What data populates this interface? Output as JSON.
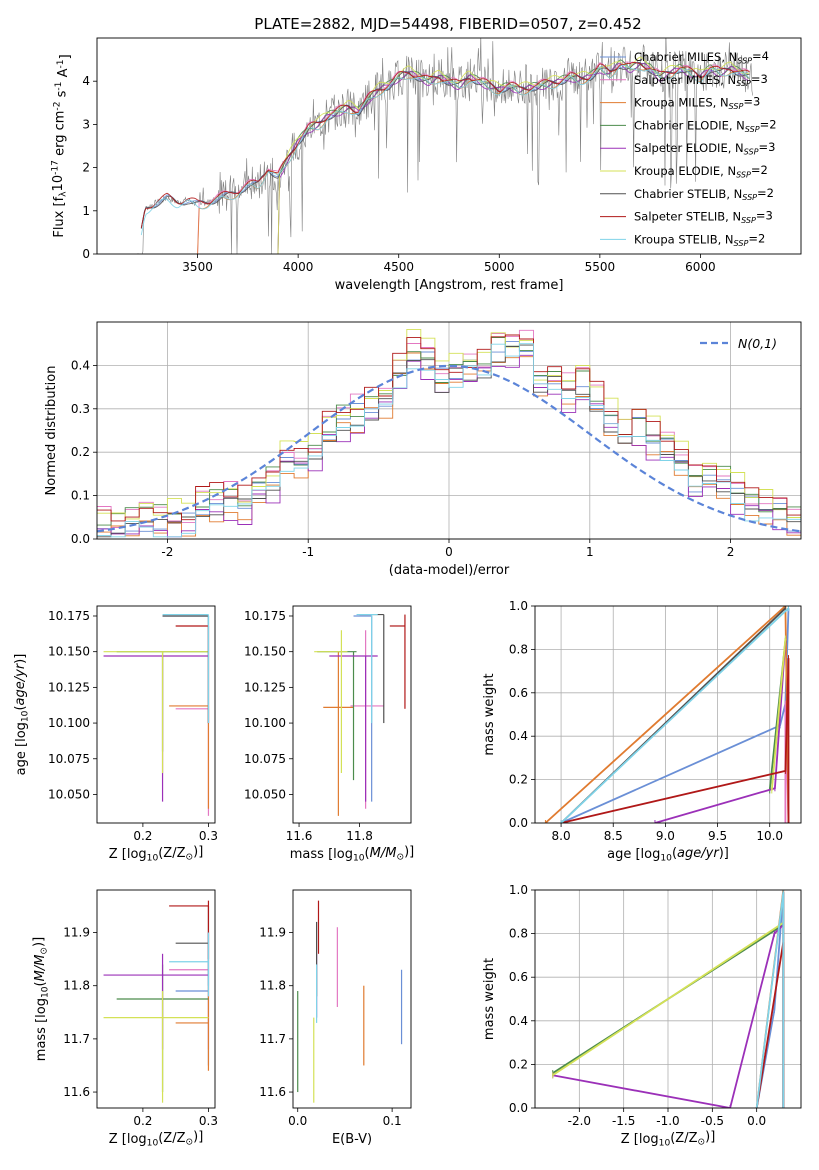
{
  "title": "PLATE=2882, MJD=54498, FIBERID=0507, z=0.452",
  "series_names": [
    "Chabrier MILES, N$_{SSP}$=4",
    "Salpeter MILES, N$_{SSP}$=3",
    "Kroupa MILES, N$_{SSP}$=3",
    "Chabrier ELODIE, N$_{SSP}$=2",
    "Salpeter ELODIE, N$_{SSP}$=3",
    "Kroupa ELODIE, N$_{SSP}$=2",
    "Chabrier STELIB, N$_{SSP}$=2",
    "Salpeter STELIB, N$_{SSP}$=3",
    "Kroupa STELIB, N$_{SSP}$=2"
  ],
  "colors": [
    "#6a8fd6",
    "#e377c2",
    "#e07b30",
    "#4c8c4c",
    "#9b30b8",
    "#d4e157",
    "#505050",
    "#b01818",
    "#7fd3e8"
  ],
  "chart_data": [
    {
      "id": "spectrum",
      "type": "line",
      "title": "PLATE=2882, MJD=54498, FIBERID=0507, z=0.452",
      "xlabel": "wavelength [Angstrom, rest frame]",
      "ylabel": "Flux [f$_λ$10$^{-17}$ erg cm$^{-2}$ s$^{-1}$ A$^{-1}$]",
      "xlim": [
        3000,
        6500
      ],
      "ylim": [
        0,
        5
      ],
      "xticks": [
        3500,
        4000,
        4500,
        5000,
        5500,
        6000
      ],
      "yticks": [
        0,
        1,
        2,
        3,
        4
      ],
      "legend": "upper right",
      "data_color": "#808080",
      "data": {
        "x": [
          3200,
          3240,
          3300,
          3350,
          3400,
          3450,
          3500,
          3550,
          3600,
          3650,
          3700,
          3750,
          3800,
          3850,
          3900,
          3950,
          4000,
          4050,
          4100,
          4150,
          4200,
          4250,
          4300,
          4350,
          4400,
          4450,
          4500,
          4550,
          4600,
          4650,
          4700,
          4750,
          4800,
          4850,
          4900,
          4950,
          5000,
          5050,
          5100,
          5150,
          5200,
          5250,
          5300,
          5350,
          5400,
          5450,
          5500,
          5550,
          5600,
          5650,
          5700,
          5750,
          5800,
          5850,
          5900,
          5950,
          6000,
          6050,
          6100,
          6150,
          6200,
          6250
        ],
        "y": [
          0,
          1.05,
          1.2,
          1.3,
          1.2,
          1.25,
          1.15,
          1.2,
          1.3,
          1.35,
          1.45,
          1.6,
          1.6,
          2.0,
          1.8,
          2.2,
          2.6,
          2.9,
          3.0,
          3.2,
          3.3,
          3.4,
          3.3,
          3.6,
          3.8,
          3.9,
          4.1,
          4.2,
          4.1,
          4.0,
          4.1,
          4.0,
          3.9,
          4.1,
          4.0,
          3.9,
          3.8,
          3.9,
          3.8,
          3.85,
          3.9,
          3.95,
          4.0,
          4.1,
          4.05,
          4.1,
          4.3,
          4.2,
          4.4,
          4.3,
          4.4,
          4.3,
          4.1,
          4.2,
          4.3,
          4.2,
          4.1,
          4.3,
          4.2,
          4.3,
          4.2,
          4.1
        ]
      },
      "models": [
        {
          "start": 3220,
          "end": 6250,
          "offset": 0
        },
        {
          "start": 3500,
          "end": 6250,
          "offset": 0.05
        },
        {
          "start": 3500,
          "end": 6250,
          "offset": -0.05
        },
        {
          "start": 3900,
          "end": 6250,
          "offset": 0.02
        },
        {
          "start": 3900,
          "end": 6250,
          "offset": -0.03
        },
        {
          "start": 3900,
          "end": 6250,
          "offset": 0.08
        },
        {
          "start": 3220,
          "end": 6250,
          "offset": -0.02
        },
        {
          "start": 3220,
          "end": 6250,
          "offset": 0.03
        },
        {
          "start": 3220,
          "end": 6250,
          "offset": -0.06
        }
      ]
    },
    {
      "id": "residuals",
      "type": "histogram",
      "xlabel": "(data-model)/error",
      "ylabel": "Normed distribution",
      "xlim": [
        -2.5,
        2.5
      ],
      "ylim": [
        0,
        0.5
      ],
      "xticks": [
        -2,
        -1,
        0,
        1,
        2
      ],
      "yticks": [
        0.0,
        0.1,
        0.2,
        0.3,
        0.4
      ],
      "reference_label": "$\\mathcal{N}(0,1)$",
      "reference_color": "#5b84d8",
      "bin_width": 0.1,
      "bins_start": -2.5,
      "heights": [
        0.03,
        0.03,
        0.04,
        0.04,
        0.04,
        0.04,
        0.04,
        0.08,
        0.08,
        0.09,
        0.08,
        0.11,
        0.13,
        0.18,
        0.18,
        0.2,
        0.25,
        0.27,
        0.29,
        0.3,
        0.32,
        0.38,
        0.43,
        0.41,
        0.37,
        0.38,
        0.39,
        0.4,
        0.44,
        0.43,
        0.44,
        0.36,
        0.37,
        0.34,
        0.36,
        0.32,
        0.27,
        0.24,
        0.26,
        0.23,
        0.21,
        0.18,
        0.13,
        0.15,
        0.13,
        0.1,
        0.08,
        0.07,
        0.06,
        0.04,
        0.03
      ]
    },
    {
      "id": "age_vs_Z",
      "type": "errorbar",
      "xlabel": "Z [log$_{10}$(Z/Z$_⊙$)]",
      "ylabel": "age  [log$_{10}$($age/yr$)]",
      "xlim": [
        0.13,
        0.31
      ],
      "ylim": [
        10.03,
        10.182
      ],
      "xticks": [
        0.2,
        0.3
      ],
      "yticks": [
        10.05,
        10.075,
        10.1,
        10.125,
        10.15,
        10.175
      ],
      "points": [
        {
          "x": 0.3,
          "y": 10.175,
          "xlo": 0.23,
          "xhi": 0.3,
          "ylo": 10.1,
          "yhi": 10.175
        },
        {
          "x": 0.3,
          "y": 10.11,
          "xlo": 0.25,
          "xhi": 0.3,
          "ylo": 10.035,
          "yhi": 10.11
        },
        {
          "x": 0.3,
          "y": 10.112,
          "xlo": 0.24,
          "xhi": 0.3,
          "ylo": 10.04,
          "yhi": 10.112
        },
        {
          "x": 0.23,
          "y": 10.15,
          "xlo": 0.16,
          "xhi": 0.3,
          "ylo": 10.08,
          "yhi": 10.15
        },
        {
          "x": 0.23,
          "y": 10.147,
          "xlo": 0.14,
          "xhi": 0.3,
          "ylo": 10.045,
          "yhi": 10.147
        },
        {
          "x": 0.23,
          "y": 10.15,
          "xlo": 0.14,
          "xhi": 0.3,
          "ylo": 10.065,
          "yhi": 10.15
        },
        {
          "x": 0.3,
          "y": 10.175,
          "xlo": 0.23,
          "xhi": 0.3,
          "ylo": 10.1,
          "yhi": 10.175
        },
        {
          "x": 0.3,
          "y": 10.168,
          "xlo": 0.25,
          "xhi": 0.3,
          "ylo": 10.1,
          "yhi": 10.168
        },
        {
          "x": 0.3,
          "y": 10.176,
          "xlo": 0.23,
          "xhi": 0.3,
          "ylo": 10.1,
          "yhi": 10.176
        }
      ]
    },
    {
      "id": "age_vs_mass",
      "type": "errorbar",
      "xlabel": "mass [log$_{10}$($M/M_⊙$)]",
      "ylabel": "",
      "xlim": [
        11.58,
        11.97
      ],
      "ylim": [
        10.03,
        10.182
      ],
      "xticks": [
        11.6,
        11.8
      ],
      "yticks": [
        10.05,
        10.075,
        10.1,
        10.125,
        10.15,
        10.175
      ],
      "points": [
        {
          "x": 11.84,
          "y": 10.175,
          "xlo": 11.78,
          "xhi": 11.84,
          "ylo": 10.045,
          "yhi": 10.175
        },
        {
          "x": 11.82,
          "y": 10.112,
          "xlo": 11.77,
          "xhi": 11.88,
          "ylo": 10.04,
          "yhi": 10.165
        },
        {
          "x": 11.73,
          "y": 10.111,
          "xlo": 11.68,
          "xhi": 11.78,
          "ylo": 10.035,
          "yhi": 10.15
        },
        {
          "x": 11.78,
          "y": 10.15,
          "xlo": 11.66,
          "xhi": 11.79,
          "ylo": 10.06,
          "yhi": 10.15
        },
        {
          "x": 11.82,
          "y": 10.147,
          "xlo": 11.7,
          "xhi": 11.86,
          "ylo": 10.045,
          "yhi": 10.147
        },
        {
          "x": 11.74,
          "y": 10.15,
          "xlo": 11.65,
          "xhi": 11.76,
          "ylo": 10.065,
          "yhi": 10.165
        },
        {
          "x": 11.88,
          "y": 10.176,
          "xlo": 11.8,
          "xhi": 11.88,
          "ylo": 10.1,
          "yhi": 10.176
        },
        {
          "x": 11.95,
          "y": 10.168,
          "xlo": 11.9,
          "xhi": 11.95,
          "ylo": 10.11,
          "yhi": 10.176
        },
        {
          "x": 11.84,
          "y": 10.176,
          "xlo": 11.79,
          "xhi": 11.86,
          "ylo": 10.1,
          "yhi": 10.176
        }
      ]
    },
    {
      "id": "weight_vs_age",
      "type": "line",
      "xlabel": "age  [log$_{10}$($age/yr$)]",
      "ylabel": "mass weight",
      "xlim": [
        7.75,
        10.3
      ],
      "ylim": [
        0,
        1
      ],
      "xticks": [
        8.0,
        8.5,
        9.0,
        9.5,
        10.0
      ],
      "yticks": [
        0.0,
        0.2,
        0.4,
        0.6,
        0.8,
        1.0
      ],
      "grid": true,
      "series": [
        {
          "x": [
            8.0,
            10.1,
            10.15,
            10.18
          ],
          "y": [
            0.0,
            0.45,
            0.55,
            0.99
          ]
        },
        {
          "x": [
            10.15,
            10.15,
            10.18
          ],
          "y": [
            0.0,
            0.55,
            0.0
          ]
        },
        {
          "x": [
            7.85,
            10.15,
            10.18
          ],
          "y": [
            0.0,
            1.0,
            0.0
          ]
        },
        {
          "x": [
            10.0,
            10.15
          ],
          "y": [
            0.15,
            0.84
          ]
        },
        {
          "x": [
            8.9,
            10.05,
            10.15
          ],
          "y": [
            0.0,
            0.16,
            0.84
          ]
        },
        {
          "x": [
            10.02,
            10.15
          ],
          "y": [
            0.15,
            0.85
          ]
        },
        {
          "x": [
            8.0,
            10.15
          ],
          "y": [
            0.0,
            0.99
          ]
        },
        {
          "x": [
            8.0,
            10.15,
            10.18,
            10.18
          ],
          "y": [
            0.0,
            0.24,
            0.76,
            0.0
          ]
        },
        {
          "x": [
            8.0,
            10.18
          ],
          "y": [
            0.0,
            0.99
          ]
        }
      ]
    },
    {
      "id": "mass_vs_Z",
      "type": "errorbar",
      "xlabel": "Z [log$_{10}$(Z/Z$_⊙$)]",
      "ylabel": "mass [log$_{10}$($M/M_⊙$)]",
      "xlim": [
        0.13,
        0.31
      ],
      "ylim": [
        11.57,
        11.98
      ],
      "xticks": [
        0.2,
        0.3
      ],
      "yticks": [
        11.6,
        11.7,
        11.8,
        11.9
      ],
      "points": [
        {
          "x": 0.3,
          "y": 11.79,
          "xlo": 0.25,
          "xhi": 0.3,
          "ylo": 11.65,
          "yhi": 11.9
        },
        {
          "x": 0.3,
          "y": 11.83,
          "xlo": 0.24,
          "xhi": 0.3,
          "ylo": 11.68,
          "yhi": 11.9
        },
        {
          "x": 0.3,
          "y": 11.73,
          "xlo": 0.25,
          "xhi": 0.3,
          "ylo": 11.64,
          "yhi": 11.8
        },
        {
          "x": 0.23,
          "y": 11.775,
          "xlo": 0.16,
          "xhi": 0.3,
          "ylo": 11.6,
          "yhi": 11.84
        },
        {
          "x": 0.23,
          "y": 11.82,
          "xlo": 0.14,
          "xhi": 0.3,
          "ylo": 11.68,
          "yhi": 11.86
        },
        {
          "x": 0.23,
          "y": 11.74,
          "xlo": 0.14,
          "xhi": 0.3,
          "ylo": 11.58,
          "yhi": 11.79
        },
        {
          "x": 0.3,
          "y": 11.88,
          "xlo": 0.25,
          "xhi": 0.3,
          "ylo": 11.8,
          "yhi": 11.95
        },
        {
          "x": 0.3,
          "y": 11.95,
          "xlo": 0.24,
          "xhi": 0.3,
          "ylo": 11.85,
          "yhi": 11.96
        },
        {
          "x": 0.3,
          "y": 11.845,
          "xlo": 0.24,
          "xhi": 0.3,
          "ylo": 11.78,
          "yhi": 11.9
        }
      ]
    },
    {
      "id": "mass_vs_EBV",
      "type": "errorbar",
      "xlabel": "E(B-V)",
      "ylabel": "",
      "xlim": [
        -0.005,
        0.12
      ],
      "ylim": [
        11.57,
        11.98
      ],
      "xticks": [
        0.0,
        0.1
      ],
      "yticks": [
        11.6,
        11.7,
        11.8,
        11.9
      ],
      "points": [
        {
          "x": 0.11,
          "y": 11.76,
          "ylo": 11.69,
          "yhi": 11.83
        },
        {
          "x": 0.042,
          "y": 11.83,
          "ylo": 11.76,
          "yhi": 11.91
        },
        {
          "x": 0.07,
          "y": 11.72,
          "ylo": 11.65,
          "yhi": 11.8
        },
        {
          "x": 0.0,
          "y": 11.69,
          "ylo": 11.6,
          "yhi": 11.79
        },
        {
          "x": 0.02,
          "y": 11.8,
          "ylo": 11.74,
          "yhi": 11.86
        },
        {
          "x": 0.017,
          "y": 11.68,
          "ylo": 11.58,
          "yhi": 11.74
        },
        {
          "x": 0.02,
          "y": 11.84,
          "ylo": 11.78,
          "yhi": 11.92
        },
        {
          "x": 0.022,
          "y": 11.91,
          "ylo": 11.86,
          "yhi": 11.96
        },
        {
          "x": 0.02,
          "y": 11.78,
          "ylo": 11.73,
          "yhi": 11.84
        }
      ]
    },
    {
      "id": "weight_vs_Z",
      "type": "line",
      "xlabel": "Z [log$_{10}$(Z/Z$_⊙$)]",
      "ylabel": "mass weight",
      "xlim": [
        -2.5,
        0.5
      ],
      "ylim": [
        0,
        1
      ],
      "xticks": [
        -2.0,
        -1.5,
        -1.0,
        -0.5,
        0.0
      ],
      "yticks": [
        0.0,
        0.2,
        0.4,
        0.6,
        0.8,
        1.0
      ],
      "grid": true,
      "series": [
        {
          "x": [
            0.0,
            0.2,
            0.3,
            0.3
          ],
          "y": [
            0.0,
            0.45,
            0.99,
            0.0
          ]
        },
        {
          "x": [
            0.3,
            0.3,
            0.3
          ],
          "y": [
            0.0,
            0.55,
            0.99
          ]
        },
        {
          "x": [
            0.0,
            0.3,
            0.3
          ],
          "y": [
            0.0,
            1.0,
            0.0
          ]
        },
        {
          "x": [
            -2.3,
            0.3
          ],
          "y": [
            0.16,
            0.84
          ]
        },
        {
          "x": [
            -2.3,
            -0.3,
            0.2,
            0.3
          ],
          "y": [
            0.15,
            0.0,
            0.8,
            0.84
          ]
        },
        {
          "x": [
            -2.3,
            0.3
          ],
          "y": [
            0.15,
            0.85
          ]
        },
        {
          "x": [
            0.3,
            0.3
          ],
          "y": [
            0.0,
            0.99
          ]
        },
        {
          "x": [
            0.0,
            0.3,
            0.3,
            0.3
          ],
          "y": [
            0.0,
            0.76,
            0.24,
            0.0
          ]
        },
        {
          "x": [
            0.0,
            0.3,
            0.3
          ],
          "y": [
            0.0,
            0.99,
            0.0
          ]
        }
      ]
    }
  ]
}
